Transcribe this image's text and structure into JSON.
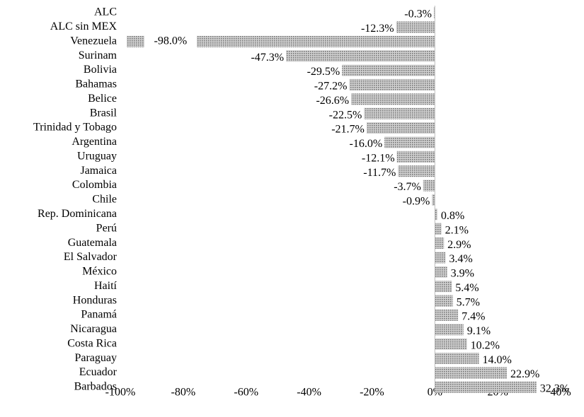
{
  "chart_data": {
    "type": "barh",
    "categories": [
      "ALC",
      "ALC sin MEX",
      "Venezuela",
      "Surinam",
      "Bolivia",
      "Bahamas",
      "Belice",
      "Brasil",
      "Trinidad y Tobago",
      "Argentina",
      "Uruguay",
      "Jamaica",
      "Colombia",
      "Chile",
      "Rep. Dominicana",
      "Perú",
      "Guatemala",
      "El Salvador",
      "México",
      "Haití",
      "Honduras",
      "Panamá",
      "Nicaragua",
      "Costa Rica",
      "Paraguay",
      "Ecuador",
      "Barbados"
    ],
    "values": [
      -0.3,
      -12.3,
      -98.0,
      -47.3,
      -29.5,
      -27.2,
      -26.6,
      -22.5,
      -21.7,
      -16.0,
      -12.1,
      -11.7,
      -3.7,
      -0.9,
      0.8,
      2.1,
      2.9,
      3.4,
      3.9,
      5.4,
      5.7,
      7.4,
      9.1,
      10.2,
      14.0,
      22.9,
      32.3
    ],
    "value_labels": [
      "-0.3%",
      "-12.3%",
      "-98.0%",
      "-47.3%",
      "-29.5%",
      "-27.2%",
      "-26.6%",
      "-22.5%",
      "-21.7%",
      "-16.0%",
      "-12.1%",
      "-11.7%",
      "-3.7%",
      "-0.9%",
      "0.8%",
      "2.1%",
      "2.9%",
      "3.4%",
      "3.9%",
      "5.4%",
      "5.7%",
      "7.4%",
      "9.1%",
      "10.2%",
      "14.0%",
      "22.9%",
      "32.3%"
    ],
    "color": "#a6a6a6",
    "xlim": [
      -100,
      40
    ],
    "xticks": [
      {
        "value": -100,
        "label": "-100%"
      },
      {
        "value": -80,
        "label": "-80%"
      },
      {
        "value": -60,
        "label": "-60%"
      },
      {
        "value": -40,
        "label": "-40%"
      },
      {
        "value": -20,
        "label": "-20%"
      },
      {
        "value": 0,
        "label": "0%"
      },
      {
        "value": 20,
        "label": "20%"
      },
      {
        "value": 40,
        "label": "40%"
      }
    ],
    "grid": false
  }
}
